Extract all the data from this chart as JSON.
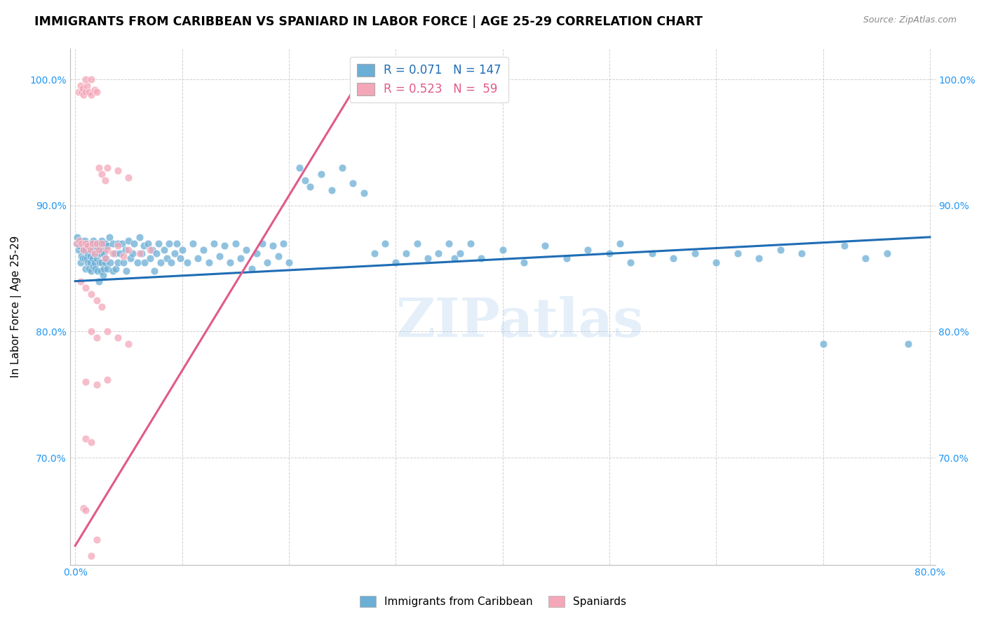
{
  "title": "IMMIGRANTS FROM CARIBBEAN VS SPANIARD IN LABOR FORCE | AGE 25-29 CORRELATION CHART",
  "source": "Source: ZipAtlas.com",
  "ylabel": "In Labor Force | Age 25-29",
  "xlim": [
    -0.005,
    0.805
  ],
  "ylim": [
    0.615,
    1.025
  ],
  "xticks": [
    0.0,
    0.1,
    0.2,
    0.3,
    0.4,
    0.5,
    0.6,
    0.7,
    0.8
  ],
  "xticklabels": [
    "0.0%",
    "",
    "",
    "",
    "",
    "",
    "",
    "",
    "80.0%"
  ],
  "yticks": [
    0.7,
    0.8,
    0.9,
    1.0
  ],
  "yticklabels": [
    "70.0%",
    "80.0%",
    "90.0%",
    "100.0%"
  ],
  "blue_color": "#6baed6",
  "pink_color": "#f4a7b9",
  "blue_line_color": "#1f6db5",
  "pink_line_color": "#e05a8a",
  "blue_R": 0.071,
  "blue_N": 147,
  "pink_R": 0.523,
  "pink_N": 59,
  "legend_label_blue": "Immigrants from Caribbean",
  "legend_label_pink": "Spaniards",
  "watermark": "ZIPatlas",
  "blue_scatter": [
    [
      0.001,
      0.87
    ],
    [
      0.002,
      0.875
    ],
    [
      0.003,
      0.865
    ],
    [
      0.004,
      0.868
    ],
    [
      0.005,
      0.872
    ],
    [
      0.005,
      0.855
    ],
    [
      0.006,
      0.86
    ],
    [
      0.007,
      0.87
    ],
    [
      0.007,
      0.858
    ],
    [
      0.008,
      0.865
    ],
    [
      0.009,
      0.872
    ],
    [
      0.009,
      0.858
    ],
    [
      0.01,
      0.865
    ],
    [
      0.01,
      0.85
    ],
    [
      0.011,
      0.87
    ],
    [
      0.011,
      0.858
    ],
    [
      0.012,
      0.862
    ],
    [
      0.012,
      0.855
    ],
    [
      0.013,
      0.868
    ],
    [
      0.013,
      0.85
    ],
    [
      0.014,
      0.86
    ],
    [
      0.014,
      0.855
    ],
    [
      0.015,
      0.87
    ],
    [
      0.015,
      0.848
    ],
    [
      0.016,
      0.865
    ],
    [
      0.016,
      0.858
    ],
    [
      0.017,
      0.872
    ],
    [
      0.017,
      0.852
    ],
    [
      0.018,
      0.862
    ],
    [
      0.018,
      0.855
    ],
    [
      0.019,
      0.868
    ],
    [
      0.019,
      0.85
    ],
    [
      0.02,
      0.865
    ],
    [
      0.02,
      0.858
    ],
    [
      0.021,
      0.87
    ],
    [
      0.021,
      0.848
    ],
    [
      0.022,
      0.862
    ],
    [
      0.022,
      0.84
    ],
    [
      0.023,
      0.87
    ],
    [
      0.023,
      0.855
    ],
    [
      0.024,
      0.862
    ],
    [
      0.024,
      0.848
    ],
    [
      0.025,
      0.872
    ],
    [
      0.025,
      0.855
    ],
    [
      0.026,
      0.865
    ],
    [
      0.026,
      0.845
    ],
    [
      0.027,
      0.862
    ],
    [
      0.027,
      0.85
    ],
    [
      0.028,
      0.87
    ],
    [
      0.028,
      0.855
    ],
    [
      0.029,
      0.858
    ],
    [
      0.03,
      0.868
    ],
    [
      0.03,
      0.85
    ],
    [
      0.032,
      0.875
    ],
    [
      0.033,
      0.855
    ],
    [
      0.035,
      0.87
    ],
    [
      0.035,
      0.848
    ],
    [
      0.037,
      0.862
    ],
    [
      0.038,
      0.85
    ],
    [
      0.04,
      0.87
    ],
    [
      0.04,
      0.855
    ],
    [
      0.042,
      0.862
    ],
    [
      0.044,
      0.87
    ],
    [
      0.045,
      0.855
    ],
    [
      0.047,
      0.865
    ],
    [
      0.048,
      0.848
    ],
    [
      0.05,
      0.872
    ],
    [
      0.052,
      0.858
    ],
    [
      0.054,
      0.862
    ],
    [
      0.055,
      0.87
    ],
    [
      0.058,
      0.855
    ],
    [
      0.06,
      0.875
    ],
    [
      0.062,
      0.862
    ],
    [
      0.064,
      0.868
    ],
    [
      0.065,
      0.855
    ],
    [
      0.068,
      0.87
    ],
    [
      0.07,
      0.858
    ],
    [
      0.072,
      0.865
    ],
    [
      0.074,
      0.848
    ],
    [
      0.076,
      0.862
    ],
    [
      0.078,
      0.87
    ],
    [
      0.08,
      0.855
    ],
    [
      0.083,
      0.865
    ],
    [
      0.086,
      0.858
    ],
    [
      0.088,
      0.87
    ],
    [
      0.09,
      0.855
    ],
    [
      0.093,
      0.862
    ],
    [
      0.095,
      0.87
    ],
    [
      0.098,
      0.858
    ],
    [
      0.1,
      0.865
    ],
    [
      0.105,
      0.855
    ],
    [
      0.11,
      0.87
    ],
    [
      0.115,
      0.858
    ],
    [
      0.12,
      0.865
    ],
    [
      0.125,
      0.855
    ],
    [
      0.13,
      0.87
    ],
    [
      0.135,
      0.86
    ],
    [
      0.14,
      0.868
    ],
    [
      0.145,
      0.855
    ],
    [
      0.15,
      0.87
    ],
    [
      0.155,
      0.858
    ],
    [
      0.16,
      0.865
    ],
    [
      0.165,
      0.85
    ],
    [
      0.17,
      0.862
    ],
    [
      0.175,
      0.87
    ],
    [
      0.18,
      0.855
    ],
    [
      0.185,
      0.868
    ],
    [
      0.19,
      0.86
    ],
    [
      0.195,
      0.87
    ],
    [
      0.2,
      0.855
    ],
    [
      0.21,
      0.93
    ],
    [
      0.215,
      0.92
    ],
    [
      0.22,
      0.915
    ],
    [
      0.23,
      0.925
    ],
    [
      0.24,
      0.912
    ],
    [
      0.25,
      0.93
    ],
    [
      0.26,
      0.918
    ],
    [
      0.27,
      0.91
    ],
    [
      0.28,
      0.862
    ],
    [
      0.29,
      0.87
    ],
    [
      0.3,
      0.855
    ],
    [
      0.31,
      0.862
    ],
    [
      0.32,
      0.87
    ],
    [
      0.33,
      0.858
    ],
    [
      0.34,
      0.862
    ],
    [
      0.35,
      0.87
    ],
    [
      0.355,
      0.858
    ],
    [
      0.36,
      0.862
    ],
    [
      0.37,
      0.87
    ],
    [
      0.38,
      0.858
    ],
    [
      0.4,
      0.865
    ],
    [
      0.42,
      0.855
    ],
    [
      0.44,
      0.868
    ],
    [
      0.46,
      0.858
    ],
    [
      0.48,
      0.865
    ],
    [
      0.5,
      0.862
    ],
    [
      0.51,
      0.87
    ],
    [
      0.52,
      0.855
    ],
    [
      0.54,
      0.862
    ],
    [
      0.56,
      0.858
    ],
    [
      0.58,
      0.862
    ],
    [
      0.6,
      0.855
    ],
    [
      0.62,
      0.862
    ],
    [
      0.64,
      0.858
    ],
    [
      0.66,
      0.865
    ],
    [
      0.68,
      0.862
    ],
    [
      0.7,
      0.79
    ],
    [
      0.72,
      0.868
    ],
    [
      0.74,
      0.858
    ],
    [
      0.76,
      0.862
    ],
    [
      0.78,
      0.79
    ]
  ],
  "pink_scatter": [
    [
      0.003,
      0.99
    ],
    [
      0.005,
      0.995
    ],
    [
      0.006,
      0.99
    ],
    [
      0.007,
      0.993
    ],
    [
      0.008,
      0.988
    ],
    [
      0.01,
      0.99
    ],
    [
      0.011,
      0.995
    ],
    [
      0.013,
      0.99
    ],
    [
      0.015,
      0.988
    ],
    [
      0.018,
      0.992
    ],
    [
      0.02,
      0.99
    ],
    [
      0.022,
      0.93
    ],
    [
      0.025,
      0.925
    ],
    [
      0.028,
      0.92
    ],
    [
      0.03,
      0.93
    ],
    [
      0.04,
      0.928
    ],
    [
      0.05,
      0.922
    ],
    [
      0.002,
      0.87
    ],
    [
      0.004,
      0.872
    ],
    [
      0.006,
      0.87
    ],
    [
      0.008,
      0.865
    ],
    [
      0.01,
      0.87
    ],
    [
      0.012,
      0.868
    ],
    [
      0.014,
      0.865
    ],
    [
      0.016,
      0.87
    ],
    [
      0.018,
      0.862
    ],
    [
      0.02,
      0.87
    ],
    [
      0.022,
      0.865
    ],
    [
      0.025,
      0.87
    ],
    [
      0.028,
      0.858
    ],
    [
      0.03,
      0.865
    ],
    [
      0.035,
      0.862
    ],
    [
      0.04,
      0.868
    ],
    [
      0.045,
      0.86
    ],
    [
      0.05,
      0.865
    ],
    [
      0.06,
      0.862
    ],
    [
      0.07,
      0.865
    ],
    [
      0.005,
      0.84
    ],
    [
      0.01,
      0.835
    ],
    [
      0.015,
      0.83
    ],
    [
      0.02,
      0.825
    ],
    [
      0.025,
      0.82
    ],
    [
      0.015,
      0.8
    ],
    [
      0.02,
      0.795
    ],
    [
      0.03,
      0.8
    ],
    [
      0.04,
      0.795
    ],
    [
      0.05,
      0.79
    ],
    [
      0.01,
      0.76
    ],
    [
      0.02,
      0.758
    ],
    [
      0.03,
      0.762
    ],
    [
      0.01,
      0.715
    ],
    [
      0.015,
      0.712
    ],
    [
      0.008,
      0.66
    ],
    [
      0.01,
      0.658
    ],
    [
      0.015,
      0.622
    ],
    [
      0.02,
      0.635
    ],
    [
      0.01,
      1.0
    ],
    [
      0.015,
      1.0
    ]
  ]
}
